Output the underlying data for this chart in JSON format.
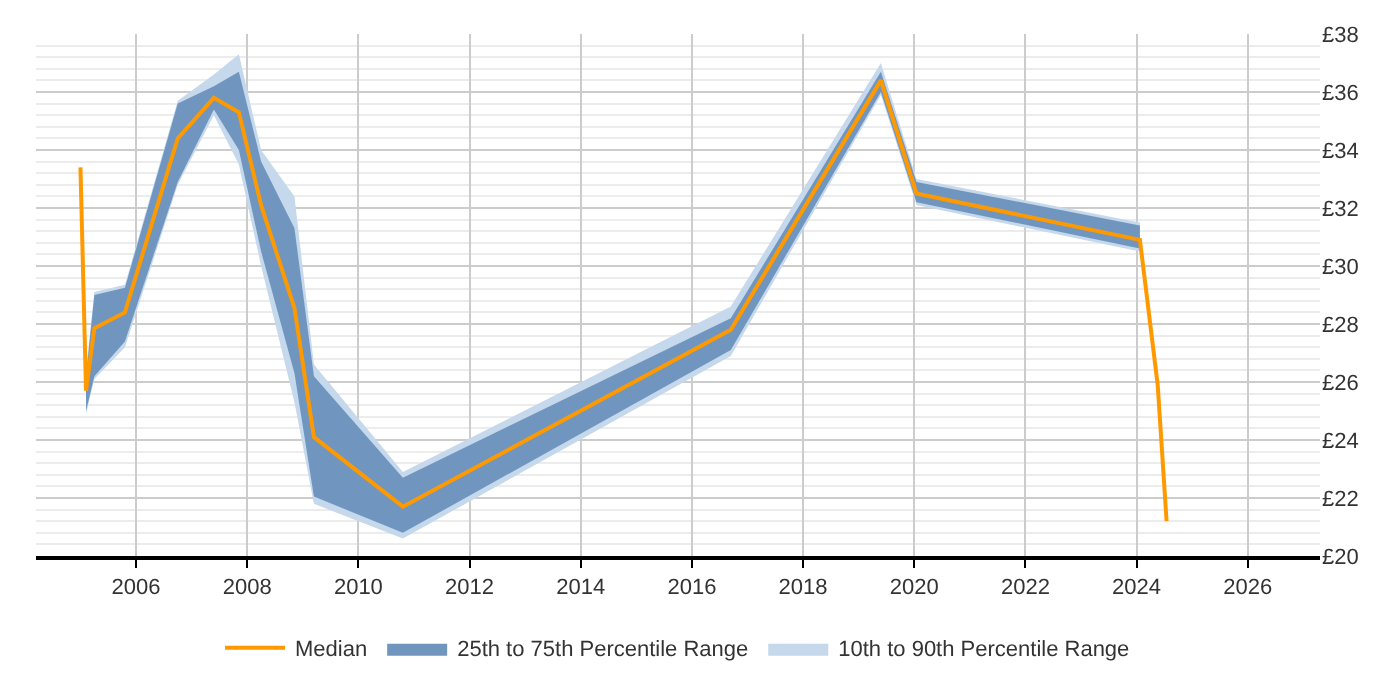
{
  "chart_data": {
    "type": "line",
    "x": [
      2005.0,
      2005.1,
      2005.25,
      2005.8,
      2006.75,
      2007.4,
      2007.85,
      2008.25,
      2008.85,
      2009.2,
      2010.8,
      2016.7,
      2019.4,
      2020.04,
      2024.06,
      2024.38,
      2024.54
    ],
    "series": [
      {
        "name": "Median",
        "color": "#ff9900",
        "values": [
          33.4,
          25.7,
          27.85,
          28.4,
          34.4,
          35.8,
          35.3,
          32.1,
          28.55,
          24.1,
          21.7,
          27.8,
          36.4,
          32.5,
          30.9,
          25.9,
          21.2
        ]
      },
      {
        "name": "25th to 75th Percentile Range",
        "type": "area",
        "color": "#7096c0",
        "values": [
          null,
          null,
          null,
          null,
          null,
          null,
          null,
          null,
          null,
          null,
          null,
          null,
          null,
          null,
          null,
          null,
          null
        ],
        "lower": [
          null,
          25.0,
          26.2,
          27.4,
          32.9,
          35.4,
          34.0,
          30.5,
          26.3,
          22.05,
          20.8,
          27.1,
          36.0,
          32.2,
          30.6,
          null,
          null
        ],
        "upper": [
          null,
          26.2,
          29.0,
          29.25,
          35.6,
          36.2,
          36.7,
          33.6,
          31.3,
          26.2,
          22.7,
          28.2,
          36.7,
          32.9,
          31.4,
          null,
          null
        ]
      },
      {
        "name": "10th to 90th Percentile Range",
        "type": "area",
        "color": "#c5d8ec",
        "values": [
          null,
          null,
          null,
          null,
          null,
          null,
          null,
          null,
          null,
          null,
          null,
          null,
          null,
          null,
          null,
          null,
          null
        ],
        "lower": [
          null,
          24.9,
          26.1,
          27.2,
          32.8,
          35.2,
          33.5,
          30.0,
          25.3,
          21.8,
          20.6,
          26.9,
          35.9,
          32.1,
          30.5,
          null,
          null
        ],
        "upper": [
          null,
          26.4,
          29.1,
          29.35,
          35.7,
          36.6,
          37.3,
          34.0,
          32.4,
          26.6,
          22.9,
          28.6,
          37.0,
          33.0,
          31.5,
          null,
          null
        ]
      }
    ],
    "xlim": [
      2004.2,
      2027.3
    ],
    "xticks": [
      2006,
      2008,
      2010,
      2012,
      2014,
      2016,
      2018,
      2020,
      2022,
      2024,
      2026
    ],
    "ylim": [
      20,
      38
    ],
    "yticks": [
      {
        "value": 20,
        "label": "£20"
      },
      {
        "value": 22,
        "label": "£22"
      },
      {
        "value": 24,
        "label": "£24"
      },
      {
        "value": 26,
        "label": "£26"
      },
      {
        "value": 28,
        "label": "£28"
      },
      {
        "value": 30,
        "label": "£30"
      },
      {
        "value": 32,
        "label": "£32"
      },
      {
        "value": 34,
        "label": "£34"
      },
      {
        "value": 36,
        "label": "£36"
      },
      {
        "value": 38,
        "label": "£38"
      }
    ],
    "grid": true,
    "legend": "bottom",
    "marker": "none",
    "line_style": "solid"
  }
}
